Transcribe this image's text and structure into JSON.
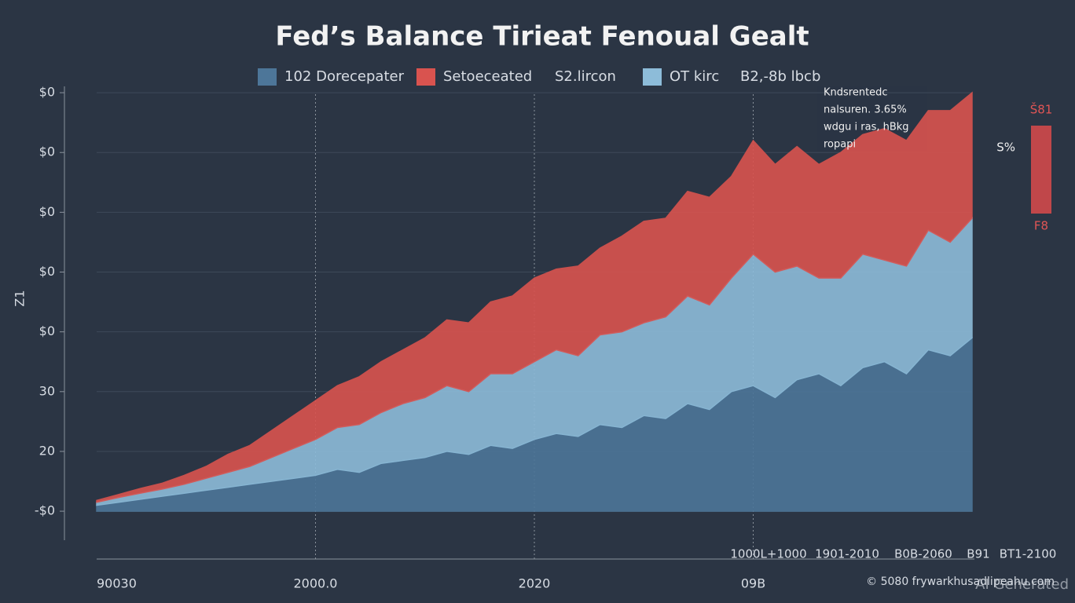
{
  "chart_data": {
    "type": "stacked-area",
    "title": "Fed’s Balance Tirieat Fenoual Gealt",
    "y_label": "Z1",
    "legend_notes": [
      "S2.lircon",
      "B2,-8b lbcb"
    ],
    "annotation": [
      "Kndsrentedc",
      "nalsuren.  3.65%",
      "wdgu i ras, hBkg",
      "ropapi"
    ],
    "side_labels": [
      "Š81",
      "S%",
      "F8"
    ],
    "bottom_labels": [
      "1000L+1000",
      "1901-2010",
      "B0B-2060",
      "B91",
      "BT1-2100"
    ],
    "footer": "© 5080 frywarkhusadlipeahu.com",
    "watermark": "AI Generated",
    "categories": [
      "90030",
      null,
      null,
      null,
      null,
      null,
      null,
      null,
      null,
      null,
      "2000.0",
      null,
      null,
      null,
      null,
      null,
      null,
      null,
      null,
      null,
      "2020",
      null,
      null,
      null,
      null,
      null,
      null,
      null,
      null,
      null,
      "09B",
      null,
      null,
      null,
      null,
      null,
      null,
      null,
      null,
      null,
      null
    ],
    "ylim": [
      -0.8,
      7.5
    ],
    "yticks": [
      {
        "value": 0,
        "label": "-$0"
      },
      {
        "value": 1,
        "label": "20"
      },
      {
        "value": 2,
        "label": "30"
      },
      {
        "value": 3,
        "label": "$0"
      },
      {
        "value": 4,
        "label": "$0"
      },
      {
        "value": 5,
        "label": "$0"
      },
      {
        "value": 6,
        "label": "$0"
      },
      {
        "value": 7,
        "label": "$0"
      }
    ],
    "grid": true,
    "series": [
      {
        "name": "102 Dorecepater",
        "color": "#4d7699",
        "values": [
          0.1,
          0.15,
          0.2,
          0.25,
          0.3,
          0.35,
          0.4,
          0.45,
          0.5,
          0.55,
          0.6,
          0.7,
          0.65,
          0.8,
          0.85,
          0.9,
          1.0,
          0.95,
          1.1,
          1.05,
          1.2,
          1.3,
          1.25,
          1.45,
          1.4,
          1.6,
          1.55,
          1.8,
          1.7,
          2.0,
          2.1,
          1.9,
          2.2,
          2.3,
          2.1,
          2.4,
          2.5,
          2.3,
          2.7,
          2.6,
          2.9
        ]
      },
      {
        "name": "OT kirc",
        "color": "#8dbcd9",
        "values": [
          0.05,
          0.08,
          0.1,
          0.12,
          0.15,
          0.2,
          0.25,
          0.3,
          0.4,
          0.5,
          0.6,
          0.7,
          0.8,
          0.85,
          0.95,
          1.0,
          1.1,
          1.05,
          1.2,
          1.25,
          1.3,
          1.4,
          1.35,
          1.5,
          1.6,
          1.55,
          1.7,
          1.8,
          1.75,
          1.9,
          2.2,
          2.1,
          1.9,
          1.6,
          1.8,
          1.9,
          1.7,
          1.8,
          2.0,
          1.9,
          2.0
        ]
      },
      {
        "name": "Setoeceated",
        "color": "#d9534f",
        "values": [
          0.03,
          0.05,
          0.08,
          0.1,
          0.15,
          0.2,
          0.3,
          0.35,
          0.45,
          0.55,
          0.65,
          0.7,
          0.8,
          0.85,
          0.9,
          1.0,
          1.1,
          1.15,
          1.2,
          1.3,
          1.4,
          1.35,
          1.5,
          1.45,
          1.6,
          1.7,
          1.65,
          1.75,
          1.8,
          1.7,
          1.9,
          1.8,
          2.0,
          1.9,
          2.1,
          2.0,
          2.2,
          2.1,
          2.0,
          2.2,
          2.1
        ]
      }
    ]
  }
}
